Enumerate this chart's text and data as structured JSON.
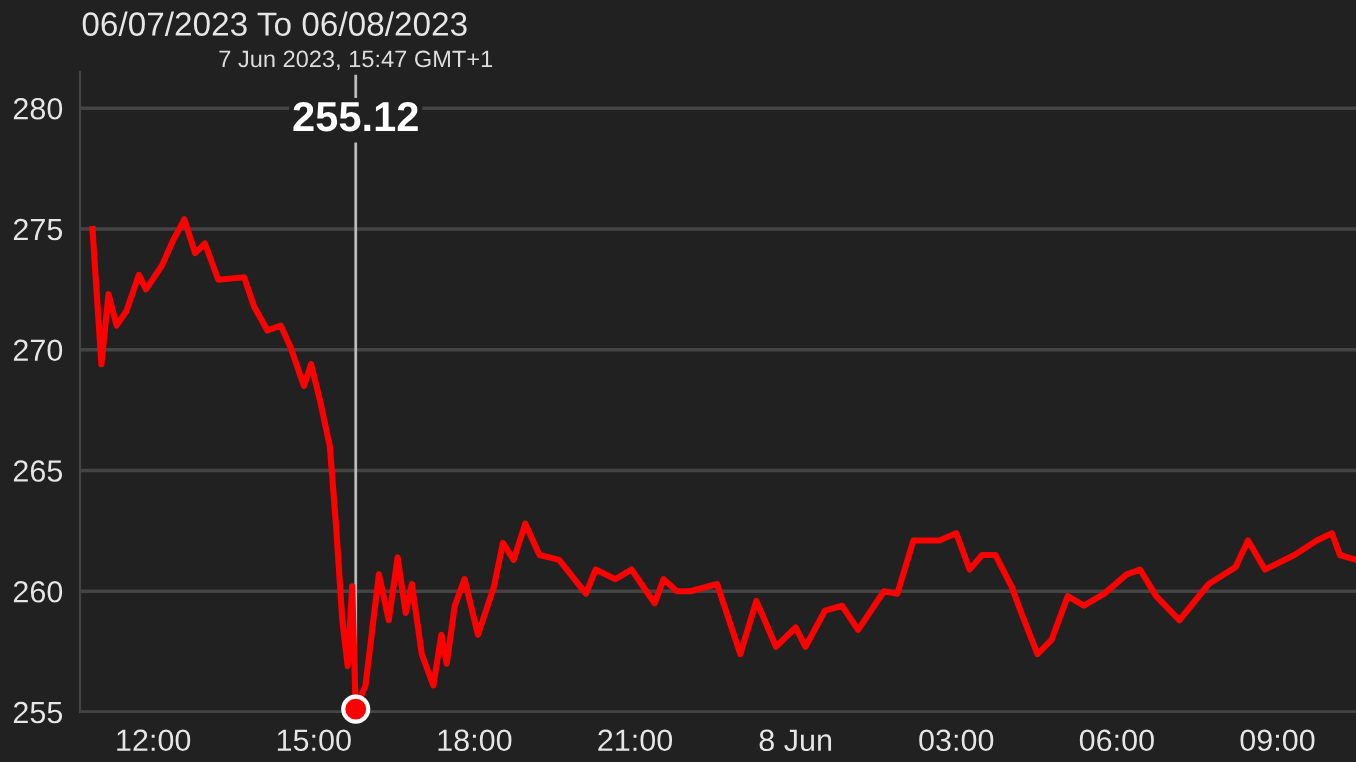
{
  "chart_data": {
    "type": "line",
    "title": "06/07/2023 To 06/08/2023",
    "x": [
      "2023-06-07T10:52",
      "2023-06-07T11:02",
      "2023-06-07T11:10",
      "2023-06-07T11:19",
      "2023-06-07T11:30",
      "2023-06-07T11:44",
      "2023-06-07T11:52",
      "2023-06-07T12:10",
      "2023-06-07T12:22",
      "2023-06-07T12:35",
      "2023-06-07T12:47",
      "2023-06-07T12:58",
      "2023-06-07T13:13",
      "2023-06-07T13:42",
      "2023-06-07T13:53",
      "2023-06-07T14:08",
      "2023-06-07T14:23",
      "2023-06-07T14:34",
      "2023-06-07T14:49",
      "2023-06-07T14:57",
      "2023-06-07T15:07",
      "2023-06-07T15:18",
      "2023-06-07T15:25",
      "2023-06-07T15:32",
      "2023-06-07T15:38",
      "2023-06-07T15:43",
      "2023-06-07T15:47",
      "2023-06-07T15:58",
      "2023-06-07T16:13",
      "2023-06-07T16:24",
      "2023-06-07T16:34",
      "2023-06-07T16:43",
      "2023-06-07T16:50",
      "2023-06-07T17:01",
      "2023-06-07T17:14",
      "2023-06-07T17:23",
      "2023-06-07T17:29",
      "2023-06-07T17:38",
      "2023-06-07T17:49",
      "2023-06-07T18:04",
      "2023-06-07T18:22",
      "2023-06-07T18:32",
      "2023-06-07T18:44",
      "2023-06-07T18:57",
      "2023-06-07T19:13",
      "2023-06-07T19:35",
      "2023-06-07T20:05",
      "2023-06-07T20:16",
      "2023-06-07T20:38",
      "2023-06-07T20:56",
      "2023-06-07T21:22",
      "2023-06-07T21:32",
      "2023-06-07T21:47",
      "2023-06-07T22:02",
      "2023-06-07T22:32",
      "2023-06-07T22:58",
      "2023-06-07T23:16",
      "2023-06-07T23:38",
      "2023-06-08T00:00",
      "2023-06-08T00:11",
      "2023-06-08T00:33",
      "2023-06-08T00:52",
      "2023-06-08T01:10",
      "2023-06-08T01:39",
      "2023-06-08T01:54",
      "2023-06-08T02:12",
      "2023-06-08T02:41",
      "2023-06-08T03:00",
      "2023-06-08T03:15",
      "2023-06-08T03:29",
      "2023-06-08T03:44",
      "2023-06-08T04:02",
      "2023-06-08T04:13",
      "2023-06-08T04:31",
      "2023-06-08T04:47",
      "2023-06-08T05:05",
      "2023-06-08T05:23",
      "2023-06-08T05:46",
      "2023-06-08T06:11",
      "2023-06-08T06:26",
      "2023-06-08T06:44",
      "2023-06-08T07:10",
      "2023-06-08T07:43",
      "2023-06-08T08:13",
      "2023-06-08T08:27",
      "2023-06-08T08:46",
      "2023-06-08T09:19",
      "2023-06-08T09:44",
      "2023-06-08T10:01",
      "2023-06-08T10:10",
      "2023-06-08T10:28"
    ],
    "series": [
      {
        "color": "#ff0000",
        "values": [
          275.0,
          269.4,
          272.3,
          271.0,
          271.6,
          273.1,
          272.5,
          273.5,
          274.5,
          275.4,
          274.0,
          274.4,
          272.9,
          273.0,
          271.8,
          270.8,
          271.0,
          270.1,
          268.5,
          269.4,
          267.9,
          266.0,
          262.7,
          258.8,
          256.9,
          260.2,
          255.12,
          256.1,
          260.7,
          258.8,
          261.4,
          259.1,
          260.3,
          257.4,
          256.1,
          258.2,
          257.0,
          259.4,
          260.5,
          258.2,
          260.2,
          262.0,
          261.3,
          262.8,
          261.5,
          261.3,
          259.9,
          260.9,
          260.5,
          260.9,
          259.5,
          260.5,
          260.0,
          260.0,
          260.3,
          257.4,
          259.6,
          257.7,
          258.5,
          257.7,
          259.2,
          259.4,
          258.4,
          260.0,
          259.9,
          262.1,
          262.1,
          262.4,
          260.9,
          261.5,
          261.5,
          260.2,
          259.1,
          257.4,
          258.0,
          259.8,
          259.4,
          259.9,
          260.7,
          260.9,
          259.8,
          258.8,
          260.3,
          261.0,
          262.1,
          260.9,
          261.5,
          262.1,
          262.4,
          261.5,
          261.3
        ]
      }
    ],
    "xlim": [
      "2023-06-07T10:38",
      "2023-06-08T10:28"
    ],
    "ylim": [
      255,
      281.5
    ],
    "xticks": [
      {
        "value": "2023-06-07T12:00",
        "label": "12:00"
      },
      {
        "value": "2023-06-07T15:00",
        "label": "15:00"
      },
      {
        "value": "2023-06-07T18:00",
        "label": "18:00"
      },
      {
        "value": "2023-06-07T21:00",
        "label": "21:00"
      },
      {
        "value": "2023-06-08T00:00",
        "label": "8 Jun"
      },
      {
        "value": "2023-06-08T03:00",
        "label": "03:00"
      },
      {
        "value": "2023-06-08T06:00",
        "label": "06:00"
      },
      {
        "value": "2023-06-08T09:00",
        "label": "09:00"
      }
    ],
    "yticks": [
      255,
      260,
      265,
      270,
      275,
      280
    ],
    "grid": "y",
    "marker": "none",
    "line_style": "solid",
    "ref_lines": [
      {
        "axis": "x",
        "value": "2023-06-07T15:47",
        "color": "#bbbbbb"
      }
    ],
    "annotations": [
      "7 Jun 2023, 15:47 GMT+1",
      "255.12"
    ]
  }
}
